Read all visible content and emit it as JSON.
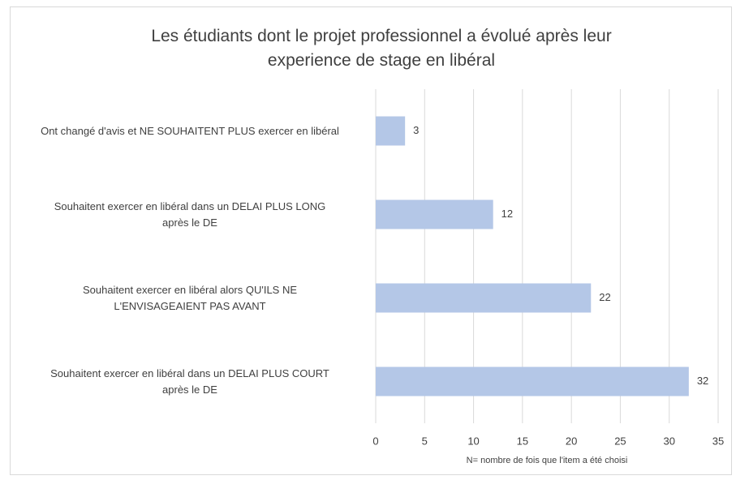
{
  "chart_data": {
    "type": "bar",
    "orientation": "horizontal",
    "title": "Les étudiants dont le projet professionnel a évolué après leur\nexperience de stage en libéral",
    "categories": [
      "Ont changé d'avis et NE SOUHAITENT PLUS exercer en libéral",
      "Souhaitent exercer en libéral dans un DELAI PLUS LONG\naprès le DE",
      "Souhaitent exercer en libéral alors QU'ILS NE\nL'ENVISAGEAIENT PAS AVANT",
      "Souhaitent exercer en libéral dans un DELAI PLUS COURT\naprès le DE"
    ],
    "values": [
      3,
      12,
      22,
      32
    ],
    "color": "#b4c7e7",
    "xlabel": "N= nombre de fois que l'item a été choisi",
    "xlim": [
      0,
      35
    ],
    "xticks": [
      0,
      5,
      10,
      15,
      20,
      25,
      30,
      35
    ],
    "grid": true
  }
}
